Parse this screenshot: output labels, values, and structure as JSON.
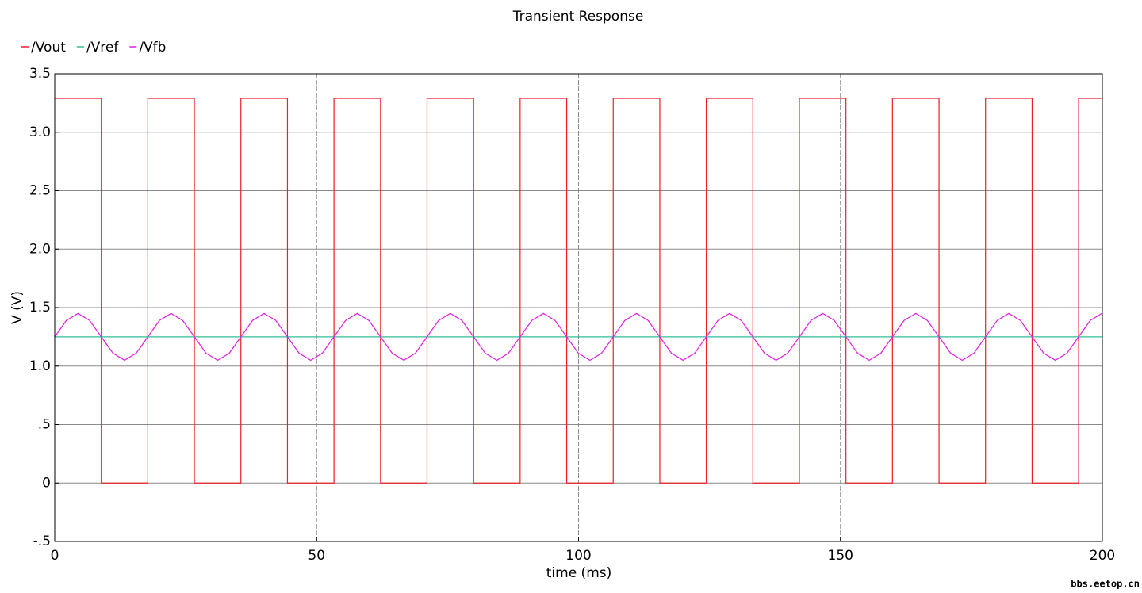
{
  "chart_data": {
    "type": "line",
    "title": "Transient Response",
    "xlabel": "time (ms)",
    "ylabel": "V (V)",
    "xlim": [
      0,
      200
    ],
    "xticks": [
      0,
      50,
      100,
      150,
      200
    ],
    "ylim": [
      -0.5,
      3.5
    ],
    "yticks": [
      {
        "value": -0.5,
        "label": "-.5"
      },
      0,
      {
        "value": 0.5,
        "label": ".5"
      },
      {
        "value": 1,
        "label": "1.0"
      },
      1.5,
      {
        "value": 2,
        "label": "2.0"
      },
      2.5,
      {
        "value": 3,
        "label": "3.0"
      },
      3.5
    ],
    "grid": true,
    "legend": "top-left",
    "series": [
      {
        "name": "/Vout",
        "color": "#e8202a",
        "x": [
          0,
          8.89,
          8.89,
          17.77,
          17.77,
          26.66,
          26.66,
          35.54,
          35.54,
          44.43,
          44.43,
          53.31,
          53.31,
          62.2,
          62.2,
          71.08,
          71.08,
          79.97,
          79.97,
          88.85,
          88.85,
          97.74,
          97.74,
          106.62,
          106.62,
          115.51,
          115.51,
          124.39,
          124.39,
          133.28,
          133.28,
          142.16,
          142.16,
          151.05,
          151.05,
          159.93,
          159.93,
          168.82,
          168.82,
          177.7,
          177.7,
          186.59,
          186.59,
          195.47,
          195.47,
          200
        ],
        "values": [
          3.29,
          3.29,
          0,
          0,
          3.29,
          3.29,
          0,
          0,
          3.29,
          3.29,
          0,
          0,
          3.29,
          3.29,
          0,
          0,
          3.29,
          3.29,
          0,
          0,
          3.29,
          3.29,
          0,
          0,
          3.29,
          3.29,
          0,
          0,
          3.29,
          3.29,
          0,
          0,
          3.29,
          3.29,
          0,
          0,
          3.29,
          3.29,
          0,
          0,
          3.29,
          3.29,
          0,
          0,
          3.29,
          3.29
        ]
      },
      {
        "name": "/Vref",
        "color": "#2fbf96",
        "x": [
          0,
          200
        ],
        "values": [
          1.25,
          1.25
        ]
      },
      {
        "name": "/Vfb",
        "color": "#e020e0",
        "x": [
          0,
          2.22,
          4.44,
          6.66,
          8.89,
          11.11,
          13.33,
          15.55,
          17.77,
          19.99,
          22.21,
          24.43,
          26.66,
          28.88,
          31.1,
          33.32,
          35.54,
          37.76,
          39.98,
          42.2,
          44.43,
          46.65,
          48.87,
          51.09,
          53.31,
          55.53,
          57.75,
          59.97,
          62.2,
          64.42,
          66.64,
          68.86,
          71.08,
          73.3,
          75.52,
          77.74,
          79.97,
          82.19,
          84.41,
          86.63,
          88.85,
          91.07,
          93.29,
          95.51,
          97.74,
          99.96,
          102.18,
          104.4,
          106.62,
          108.84,
          111.06,
          113.28,
          115.51,
          117.73,
          119.95,
          122.17,
          124.39,
          126.61,
          128.83,
          131.05,
          133.28,
          135.5,
          137.72,
          139.94,
          142.16,
          144.38,
          146.6,
          148.82,
          151.05,
          153.27,
          155.49,
          157.71,
          159.93,
          162.15,
          164.37,
          166.59,
          168.82,
          171.04,
          173.26,
          175.48,
          177.7,
          179.92,
          182.14,
          184.36,
          186.59,
          188.81,
          191.03,
          193.25,
          195.47,
          197.69,
          199.91
        ],
        "values": [
          1.25,
          1.39,
          1.45,
          1.39,
          1.25,
          1.11,
          1.05,
          1.11,
          1.25,
          1.39,
          1.45,
          1.39,
          1.25,
          1.11,
          1.05,
          1.11,
          1.25,
          1.39,
          1.45,
          1.39,
          1.25,
          1.11,
          1.05,
          1.11,
          1.25,
          1.39,
          1.45,
          1.39,
          1.25,
          1.11,
          1.05,
          1.11,
          1.25,
          1.39,
          1.45,
          1.39,
          1.25,
          1.11,
          1.05,
          1.11,
          1.25,
          1.39,
          1.45,
          1.39,
          1.25,
          1.11,
          1.05,
          1.11,
          1.25,
          1.39,
          1.45,
          1.39,
          1.25,
          1.11,
          1.05,
          1.11,
          1.25,
          1.39,
          1.45,
          1.39,
          1.25,
          1.11,
          1.05,
          1.11,
          1.25,
          1.39,
          1.45,
          1.39,
          1.25,
          1.11,
          1.05,
          1.11,
          1.25,
          1.39,
          1.45,
          1.39,
          1.25,
          1.11,
          1.05,
          1.11,
          1.25,
          1.39,
          1.45,
          1.39,
          1.25,
          1.11,
          1.05,
          1.11,
          1.25,
          1.39,
          1.45
        ]
      }
    ]
  },
  "watermark": "bbs.eetop.cn"
}
